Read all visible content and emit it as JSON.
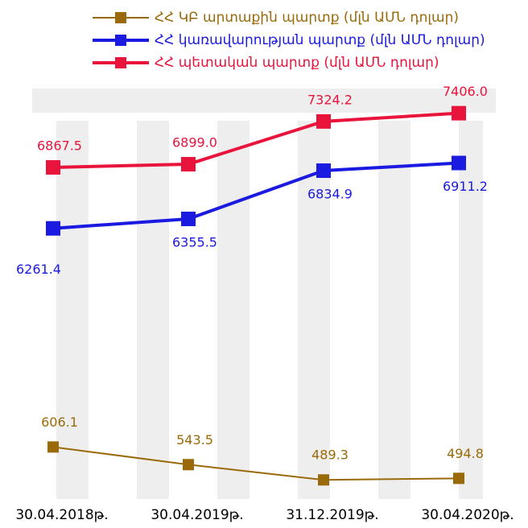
{
  "chart_data": {
    "type": "line",
    "categories": [
      "30.04.2018թ.",
      "30.04.2019թ.",
      "31.12.2019թ.",
      "30.04.2020թ."
    ],
    "series": [
      {
        "name": "ՀՀ ԿԲ արտաքին պարտք (մլն ԱՄՆ դոլար)",
        "color": "#9a6a0a",
        "axis": "y2",
        "values": [
          606.1,
          543.5,
          489.3,
          494.8
        ],
        "value_labels": [
          "606.1",
          "543.5",
          "489.3",
          "494.8"
        ]
      },
      {
        "name": "ՀՀ կառավարության պարտք (մլն ԱՄՆ դոլար)",
        "color": "#1a1ae0",
        "values": [
          6261.4,
          6355.5,
          6834.9,
          6911.2
        ],
        "value_labels": [
          "6261.4",
          "6355.5",
          "6834.9",
          "6911.2"
        ]
      },
      {
        "name": "ՀՀ պետական պարտք (մլն ԱՄՆ դոլար)",
        "color": "#e8143c",
        "values": [
          6867.5,
          6899.0,
          7324.2,
          7406.0
        ],
        "value_labels": [
          "6867.5",
          "6899.0",
          "7324.2",
          "7406.0"
        ]
      }
    ],
    "ylim": [
      6000,
      7500
    ],
    "y2lim": [
      450,
      650
    ]
  }
}
